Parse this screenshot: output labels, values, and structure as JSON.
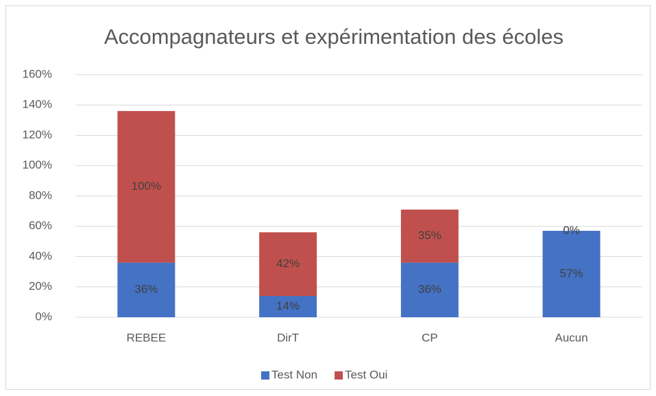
{
  "chart_data": {
    "type": "stacked_bar",
    "title": "Accompagnateurs et expérimentation des écoles",
    "categories": [
      "REBEE",
      "DirT",
      "CP",
      "Aucun"
    ],
    "series": [
      {
        "name": "Test Non",
        "color": "#4472c4",
        "values": [
          36,
          14,
          36,
          57
        ],
        "value_labels": [
          "36%",
          "14%",
          "36%",
          "57%"
        ]
      },
      {
        "name": "Test Oui",
        "color": "#c0504d",
        "values": [
          100,
          42,
          35,
          0
        ],
        "value_labels": [
          "100%",
          "42%",
          "35%",
          "0%"
        ]
      }
    ],
    "ylim": [
      0,
      160
    ],
    "yticks": [
      {
        "value": 0,
        "label": "0%"
      },
      {
        "value": 20,
        "label": "20%"
      },
      {
        "value": 40,
        "label": "40%"
      },
      {
        "value": 60,
        "label": "60%"
      },
      {
        "value": 80,
        "label": "80%"
      },
      {
        "value": 100,
        "label": "100%"
      },
      {
        "value": 120,
        "label": "120%"
      },
      {
        "value": 140,
        "label": "140%"
      },
      {
        "value": 160,
        "label": "160%"
      }
    ],
    "grid": true,
    "legend": "bottom"
  }
}
